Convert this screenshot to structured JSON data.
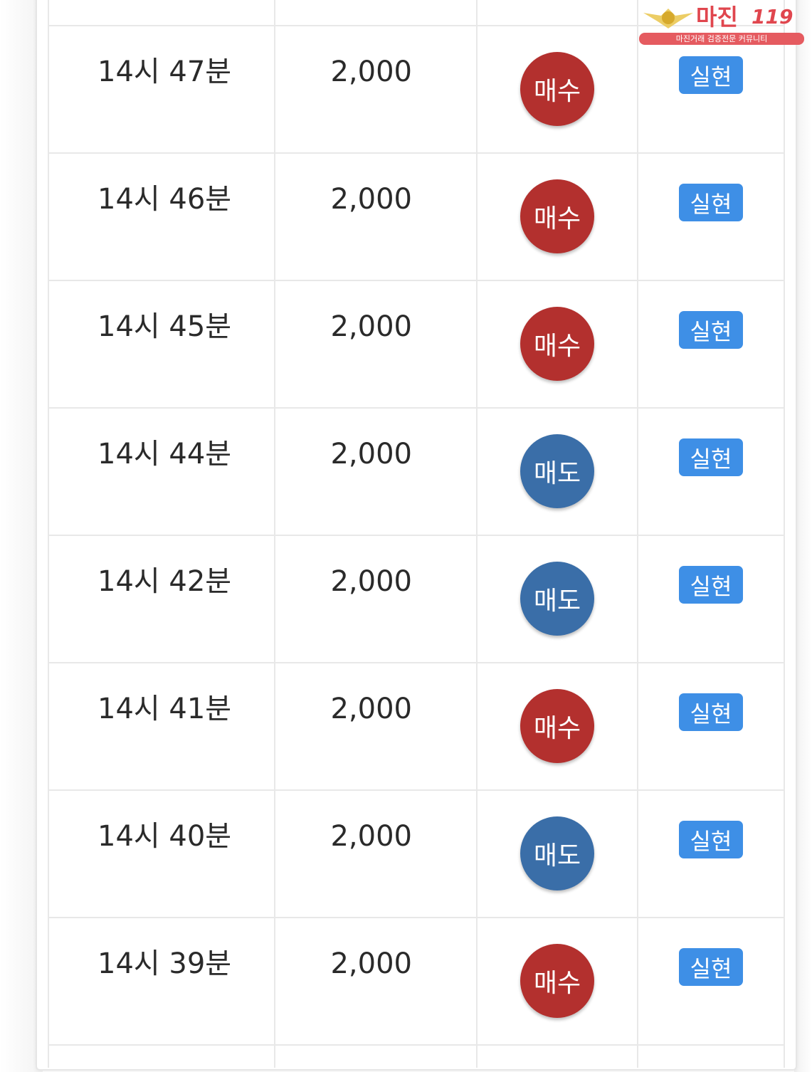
{
  "logo": {
    "brand": "마진",
    "number": "119",
    "tagline": "마진거래 검증전문 커뮤니티"
  },
  "colors": {
    "buy": "#b3302e",
    "sell": "#3a6ea8",
    "result": "#3e8fe6"
  },
  "rows": [
    {
      "time": "14시 47분",
      "amount": "2,000",
      "side": "매수",
      "type": "buy",
      "result": "실현"
    },
    {
      "time": "14시 46분",
      "amount": "2,000",
      "side": "매수",
      "type": "buy",
      "result": "실현"
    },
    {
      "time": "14시 45분",
      "amount": "2,000",
      "side": "매수",
      "type": "buy",
      "result": "실현"
    },
    {
      "time": "14시 44분",
      "amount": "2,000",
      "side": "매도",
      "type": "sell",
      "result": "실현"
    },
    {
      "time": "14시 42분",
      "amount": "2,000",
      "side": "매도",
      "type": "sell",
      "result": "실현"
    },
    {
      "time": "14시 41분",
      "amount": "2,000",
      "side": "매수",
      "type": "buy",
      "result": "실현"
    },
    {
      "time": "14시 40분",
      "amount": "2,000",
      "side": "매도",
      "type": "sell",
      "result": "실현"
    },
    {
      "time": "14시 39분",
      "amount": "2,000",
      "side": "매수",
      "type": "buy",
      "result": "실현"
    }
  ]
}
